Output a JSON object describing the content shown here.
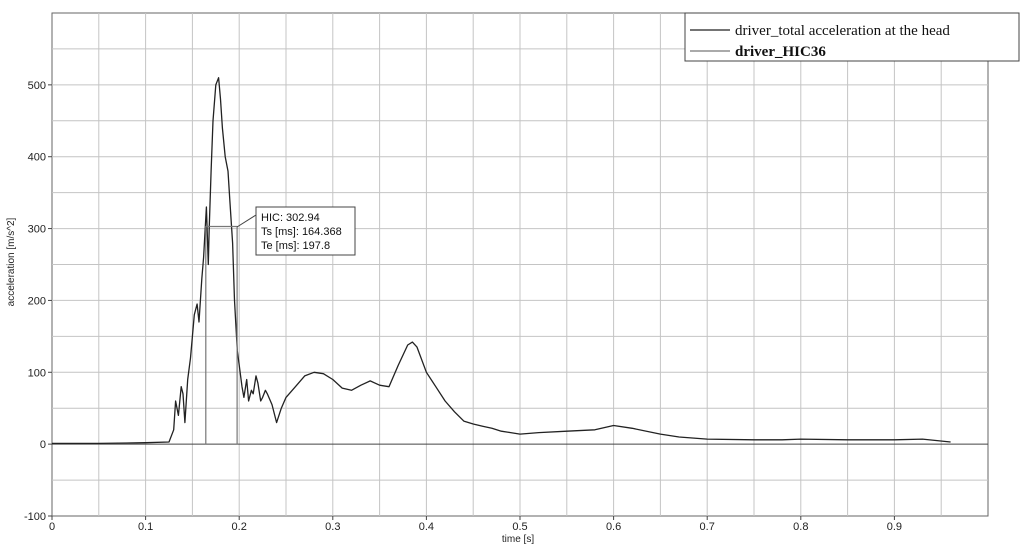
{
  "chart_data": {
    "type": "line",
    "xlabel": "time [s]",
    "ylabel": "acceleration [m/s^2]",
    "xlim": [
      0,
      1
    ],
    "ylim": [
      -100,
      600
    ],
    "x_ticks": [
      0,
      0.1,
      0.2,
      0.3,
      0.4,
      0.5,
      0.6,
      0.7,
      0.8,
      0.9
    ],
    "x_tick_labels": [
      "0",
      "0.1",
      "0.2",
      "0.3",
      "0.4",
      "0.5",
      "0.6",
      "0.7",
      "0.8",
      "0.9"
    ],
    "y_ticks": [
      -100,
      0,
      100,
      200,
      300,
      400,
      500
    ],
    "y_tick_labels": [
      "-100",
      "0",
      "100",
      "200",
      "300",
      "400",
      "500"
    ],
    "grid": true,
    "legend_position": "top-right",
    "series": [
      {
        "name": "driver_total acceleration at the head",
        "color": "#222222",
        "x": [
          0,
          0.05,
          0.1,
          0.125,
          0.13,
          0.132,
          0.135,
          0.138,
          0.14,
          0.142,
          0.145,
          0.148,
          0.15,
          0.152,
          0.155,
          0.157,
          0.16,
          0.162,
          0.165,
          0.167,
          0.168,
          0.17,
          0.172,
          0.175,
          0.178,
          0.18,
          0.182,
          0.185,
          0.188,
          0.19,
          0.193,
          0.195,
          0.198,
          0.2,
          0.203,
          0.205,
          0.208,
          0.21,
          0.213,
          0.215,
          0.218,
          0.22,
          0.223,
          0.225,
          0.228,
          0.23,
          0.235,
          0.24,
          0.245,
          0.25,
          0.26,
          0.27,
          0.28,
          0.29,
          0.3,
          0.31,
          0.32,
          0.33,
          0.34,
          0.35,
          0.36,
          0.37,
          0.38,
          0.385,
          0.39,
          0.4,
          0.41,
          0.42,
          0.43,
          0.44,
          0.45,
          0.46,
          0.47,
          0.48,
          0.49,
          0.5,
          0.52,
          0.55,
          0.58,
          0.6,
          0.62,
          0.65,
          0.67,
          0.7,
          0.75,
          0.78,
          0.8,
          0.85,
          0.9,
          0.93,
          0.96
        ],
        "y": [
          1,
          1,
          2,
          3,
          20,
          60,
          40,
          80,
          70,
          30,
          90,
          120,
          150,
          180,
          195,
          170,
          230,
          260,
          330,
          250,
          300,
          380,
          450,
          500,
          510,
          480,
          440,
          400,
          380,
          340,
          280,
          200,
          130,
          110,
          80,
          65,
          90,
          60,
          75,
          70,
          95,
          85,
          60,
          65,
          75,
          70,
          55,
          30,
          50,
          65,
          80,
          95,
          100,
          98,
          90,
          78,
          75,
          82,
          88,
          82,
          80,
          110,
          138,
          142,
          135,
          100,
          80,
          60,
          45,
          32,
          28,
          25,
          22,
          18,
          16,
          14,
          16,
          18,
          20,
          26,
          22,
          14,
          10,
          7,
          6,
          6,
          7,
          6,
          6,
          7,
          3
        ]
      },
      {
        "name": "driver_HIC36",
        "color": "#777777",
        "x": [
          0.164368,
          0.164368,
          0.1978,
          0.1978
        ],
        "y": [
          0,
          302.94,
          302.94,
          0
        ]
      }
    ],
    "annotations": [
      "HIC: 302.94",
      "Ts [ms]: 164.368",
      "Te [ms]: 197.8"
    ]
  }
}
